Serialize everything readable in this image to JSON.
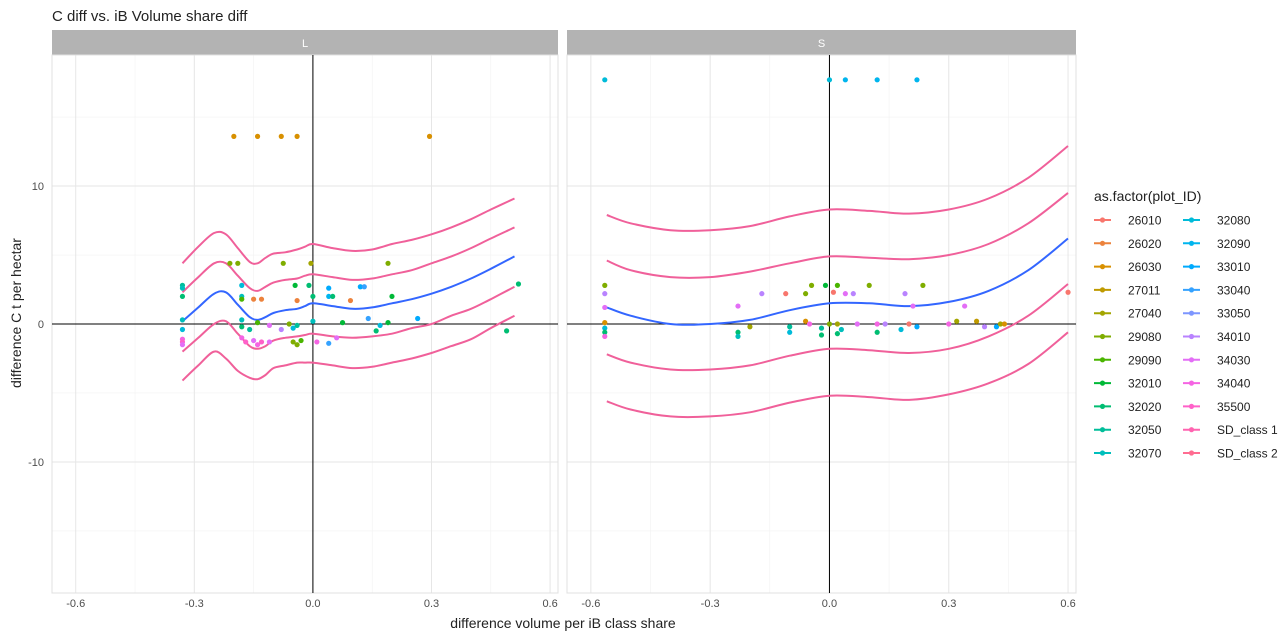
{
  "chart_data": {
    "type": "scatter",
    "title": "C diff vs. iB Volume share diff",
    "xlabel": "difference volume per iB class share",
    "ylabel": "difference C t per hectar",
    "xlim": [
      -0.66,
      0.62
    ],
    "ylim": [
      -19.5,
      19.5
    ],
    "x_ticks": [
      -0.6,
      -0.3,
      0.0,
      0.3,
      0.6
    ],
    "x_tick_labels": [
      "-0.6",
      "-0.3",
      "0.0",
      "0.3",
      "0.6"
    ],
    "y_ticks": [
      -10,
      0,
      10
    ],
    "y_tick_labels": [
      "-10",
      "0",
      "10"
    ],
    "grid": true,
    "reference_lines": {
      "x": 0,
      "y": 0
    },
    "legend": {
      "title": "as.factor(plot_ID)",
      "placement": "right",
      "entries": [
        {
          "label": "26010",
          "color": "#F8766D"
        },
        {
          "label": "26020",
          "color": "#EC823C"
        },
        {
          "label": "26030",
          "color": "#D89000"
        },
        {
          "label": "27011",
          "color": "#BF9A00"
        },
        {
          "label": "27040",
          "color": "#A3A500"
        },
        {
          "label": "29080",
          "color": "#7FAD00"
        },
        {
          "label": "29090",
          "color": "#4AB500"
        },
        {
          "label": "32010",
          "color": "#00B937"
        },
        {
          "label": "32020",
          "color": "#00BD72"
        },
        {
          "label": "32050",
          "color": "#00BE9A"
        },
        {
          "label": "32070",
          "color": "#00BFBC"
        },
        {
          "label": "32080",
          "color": "#00BBD9"
        },
        {
          "label": "32090",
          "color": "#00B5EE"
        },
        {
          "label": "33010",
          "color": "#00AAFE"
        },
        {
          "label": "33040",
          "color": "#35A2FF"
        },
        {
          "label": "33050",
          "color": "#7D96FF"
        },
        {
          "label": "34010",
          "color": "#B983FF"
        },
        {
          "label": "34030",
          "color": "#E36EF6"
        },
        {
          "label": "34040",
          "color": "#F564E3"
        },
        {
          "label": "35500",
          "color": "#FF61C9"
        },
        {
          "label": "SD_class 1",
          "color": "#FF64B0"
        },
        {
          "label": "SD_class 2",
          "color": "#FF6C91"
        }
      ]
    },
    "trend_color": "#3366FF",
    "band_color": "#F0609A",
    "panels": [
      {
        "strip": "L",
        "trend": {
          "x": [
            -0.33,
            -0.29,
            -0.25,
            -0.22,
            -0.19,
            -0.16,
            -0.14,
            -0.12,
            -0.1,
            -0.07,
            -0.04,
            -0.02,
            0.0,
            0.05,
            0.1,
            0.15,
            0.2,
            0.25,
            0.3,
            0.35,
            0.4,
            0.45,
            0.51
          ],
          "y": [
            0.2,
            1.2,
            2.2,
            2.3,
            1.4,
            0.5,
            0.3,
            0.5,
            0.8,
            1.0,
            1.1,
            1.3,
            1.5,
            1.3,
            1.1,
            1.2,
            1.5,
            1.8,
            2.2,
            2.7,
            3.3,
            4.0,
            4.9
          ]
        },
        "bands": [
          {
            "name": "SD_class 2",
            "upper": [
              4.4,
              5.6,
              6.6,
              6.5,
              5.5,
              4.5,
              4.4,
              4.8,
              5.1,
              5.2,
              5.4,
              5.6,
              5.8,
              5.5,
              5.3,
              5.4,
              5.8,
              6.1,
              6.5,
              7.0,
              7.6,
              8.3,
              9.1
            ],
            "lower": [
              -4.1,
              -3.0,
              -2.0,
              -2.5,
              -3.4,
              -3.9,
              -4.0,
              -3.7,
              -3.2,
              -3.0,
              -2.8,
              -2.8,
              -2.8,
              -3.0,
              -3.2,
              -3.1,
              -2.8,
              -2.5,
              -2.1,
              -1.6,
              -1.1,
              -0.3,
              0.6
            ]
          },
          {
            "name": "SD_class 1",
            "upper": [
              2.3,
              3.4,
              4.4,
              4.4,
              3.5,
              2.6,
              2.4,
              2.7,
              3.0,
              3.2,
              3.3,
              3.5,
              3.6,
              3.4,
              3.2,
              3.3,
              3.6,
              3.9,
              4.4,
              4.9,
              5.5,
              6.2,
              7.0
            ],
            "lower": [
              -2.0,
              -1.0,
              0.0,
              0.2,
              -0.7,
              -1.6,
              -1.8,
              -1.6,
              -1.2,
              -1.0,
              -0.9,
              -0.8,
              -0.7,
              -0.9,
              -1.0,
              -0.9,
              -0.7,
              -0.3,
              0.0,
              0.6,
              1.1,
              1.8,
              2.7
            ]
          }
        ],
        "points": [
          {
            "x": -0.2,
            "y": 13.6,
            "series": "26030"
          },
          {
            "x": -0.14,
            "y": 13.6,
            "series": "26030"
          },
          {
            "x": -0.08,
            "y": 13.6,
            "series": "26030"
          },
          {
            "x": -0.04,
            "y": 13.6,
            "series": "26030"
          },
          {
            "x": 0.295,
            "y": 13.6,
            "series": "26030"
          },
          {
            "x": -0.21,
            "y": 4.4,
            "series": "29080"
          },
          {
            "x": -0.19,
            "y": 4.4,
            "series": "29080"
          },
          {
            "x": -0.075,
            "y": 4.4,
            "series": "29080"
          },
          {
            "x": -0.005,
            "y": 4.4,
            "series": "27040"
          },
          {
            "x": 0.19,
            "y": 4.4,
            "series": "29080"
          },
          {
            "x": -0.33,
            "y": 2.8,
            "series": "32050"
          },
          {
            "x": -0.33,
            "y": 2.6,
            "series": "32070"
          },
          {
            "x": -0.33,
            "y": 2.0,
            "series": "32020"
          },
          {
            "x": -0.18,
            "y": 2.8,
            "series": "32080"
          },
          {
            "x": -0.18,
            "y": 2.0,
            "series": "32070"
          },
          {
            "x": -0.18,
            "y": 1.8,
            "series": "29090"
          },
          {
            "x": -0.045,
            "y": 2.8,
            "series": "32010"
          },
          {
            "x": -0.01,
            "y": 2.8,
            "series": "32020"
          },
          {
            "x": 0.04,
            "y": 2.6,
            "series": "33010"
          },
          {
            "x": 0.12,
            "y": 2.7,
            "series": "33010"
          },
          {
            "x": 0.13,
            "y": 2.7,
            "series": "33040"
          },
          {
            "x": 0.0,
            "y": 2.0,
            "series": "32020"
          },
          {
            "x": 0.04,
            "y": 2.0,
            "series": "32090"
          },
          {
            "x": 0.05,
            "y": 2.0,
            "series": "32020"
          },
          {
            "x": 0.2,
            "y": 2.0,
            "series": "32010"
          },
          {
            "x": -0.15,
            "y": 1.8,
            "series": "26020"
          },
          {
            "x": -0.13,
            "y": 1.8,
            "series": "26020"
          },
          {
            "x": -0.04,
            "y": 1.7,
            "series": "26020"
          },
          {
            "x": 0.095,
            "y": 1.7,
            "series": "26020"
          },
          {
            "x": 0.52,
            "y": 2.9,
            "series": "32020"
          },
          {
            "x": -0.33,
            "y": 0.3,
            "series": "32070"
          },
          {
            "x": -0.18,
            "y": 0.3,
            "series": "32070"
          },
          {
            "x": -0.33,
            "y": -0.4,
            "series": "32080"
          },
          {
            "x": -0.18,
            "y": -0.2,
            "series": "32020"
          },
          {
            "x": -0.16,
            "y": -0.4,
            "series": "32050"
          },
          {
            "x": -0.14,
            "y": 0.1,
            "series": "29090"
          },
          {
            "x": -0.11,
            "y": -0.1,
            "series": "34030"
          },
          {
            "x": -0.08,
            "y": -0.4,
            "series": "34010"
          },
          {
            "x": -0.06,
            "y": 0.0,
            "series": "29080"
          },
          {
            "x": -0.05,
            "y": -0.3,
            "series": "32080"
          },
          {
            "x": -0.04,
            "y": -0.1,
            "series": "32050"
          },
          {
            "x": 0.0,
            "y": 0.2,
            "series": "32070"
          },
          {
            "x": 0.075,
            "y": 0.1,
            "series": "32010"
          },
          {
            "x": 0.14,
            "y": 0.4,
            "series": "33040"
          },
          {
            "x": 0.17,
            "y": -0.1,
            "series": "32080"
          },
          {
            "x": 0.19,
            "y": 0.1,
            "series": "32010"
          },
          {
            "x": 0.265,
            "y": 0.4,
            "series": "33010"
          },
          {
            "x": 0.16,
            "y": -0.5,
            "series": "32020"
          },
          {
            "x": 0.49,
            "y": -0.5,
            "series": "32020"
          },
          {
            "x": -0.33,
            "y": -1.1,
            "series": "34040"
          },
          {
            "x": -0.33,
            "y": -1.3,
            "series": "35500"
          },
          {
            "x": -0.33,
            "y": -1.5,
            "series": "34030"
          },
          {
            "x": -0.18,
            "y": -1.0,
            "series": "34040"
          },
          {
            "x": -0.17,
            "y": -1.3,
            "series": "35500"
          },
          {
            "x": -0.15,
            "y": -1.2,
            "series": "34030"
          },
          {
            "x": -0.14,
            "y": -1.5,
            "series": "34040"
          },
          {
            "x": -0.13,
            "y": -1.3,
            "series": "35500"
          },
          {
            "x": -0.11,
            "y": -1.3,
            "series": "34030"
          },
          {
            "x": -0.05,
            "y": -1.3,
            "series": "29080"
          },
          {
            "x": -0.04,
            "y": -1.5,
            "series": "29080"
          },
          {
            "x": -0.03,
            "y": -1.2,
            "series": "29090"
          },
          {
            "x": 0.01,
            "y": -1.3,
            "series": "34040"
          },
          {
            "x": 0.04,
            "y": -1.4,
            "series": "33040"
          },
          {
            "x": 0.06,
            "y": -1.0,
            "series": "34030"
          }
        ]
      },
      {
        "strip": "S",
        "trend": {
          "x": [
            -0.56,
            -0.5,
            -0.4,
            -0.3,
            -0.2,
            -0.1,
            0.0,
            0.1,
            0.2,
            0.3,
            0.4,
            0.5,
            0.6
          ],
          "y": [
            1.2,
            0.6,
            0.0,
            0.0,
            0.3,
            1.0,
            1.5,
            1.5,
            1.3,
            1.6,
            2.4,
            3.9,
            6.2
          ]
        },
        "bands": [
          {
            "name": "SD_class 2",
            "upper": [
              7.9,
              7.3,
              6.8,
              6.8,
              7.1,
              7.8,
              8.3,
              8.2,
              8.0,
              8.3,
              9.1,
              10.6,
              12.9
            ],
            "lower": [
              -5.6,
              -6.2,
              -6.7,
              -6.7,
              -6.4,
              -5.7,
              -5.2,
              -5.3,
              -5.5,
              -5.1,
              -4.3,
              -2.9,
              -0.6
            ]
          },
          {
            "name": "SD_class 1",
            "upper": [
              4.6,
              3.9,
              3.4,
              3.4,
              3.8,
              4.4,
              4.9,
              4.8,
              4.7,
              5.0,
              5.8,
              7.3,
              9.5
            ],
            "lower": [
              -2.2,
              -2.8,
              -3.3,
              -3.3,
              -3.0,
              -2.3,
              -1.8,
              -1.9,
              -2.1,
              -1.8,
              -0.9,
              0.6,
              2.9
            ]
          }
        ],
        "points": [
          {
            "x": -0.565,
            "y": 17.7,
            "series": "32080"
          },
          {
            "x": 0.0,
            "y": 17.7,
            "series": "32080"
          },
          {
            "x": 0.04,
            "y": 17.7,
            "series": "32090"
          },
          {
            "x": 0.12,
            "y": 17.7,
            "series": "32090"
          },
          {
            "x": 0.22,
            "y": 17.7,
            "series": "32090"
          },
          {
            "x": -0.565,
            "y": 2.8,
            "series": "29080"
          },
          {
            "x": -0.565,
            "y": 2.2,
            "series": "34010"
          },
          {
            "x": -0.565,
            "y": 1.2,
            "series": "34030"
          },
          {
            "x": -0.565,
            "y": 0.1,
            "series": "26030"
          },
          {
            "x": -0.565,
            "y": -0.3,
            "series": "32080"
          },
          {
            "x": -0.565,
            "y": -0.6,
            "series": "32020"
          },
          {
            "x": -0.565,
            "y": -0.9,
            "series": "34040"
          },
          {
            "x": -0.23,
            "y": 1.3,
            "series": "34030"
          },
          {
            "x": -0.2,
            "y": -0.2,
            "series": "27040"
          },
          {
            "x": -0.23,
            "y": -0.6,
            "series": "32020"
          },
          {
            "x": -0.23,
            "y": -0.9,
            "series": "32070"
          },
          {
            "x": -0.17,
            "y": 2.2,
            "series": "34010"
          },
          {
            "x": -0.11,
            "y": 2.2,
            "series": "26010"
          },
          {
            "x": -0.1,
            "y": -0.2,
            "series": "32050"
          },
          {
            "x": -0.1,
            "y": -0.6,
            "series": "32080"
          },
          {
            "x": -0.06,
            "y": 2.2,
            "series": "29080"
          },
          {
            "x": -0.045,
            "y": 2.8,
            "series": "29080"
          },
          {
            "x": -0.01,
            "y": 2.8,
            "series": "32010"
          },
          {
            "x": -0.06,
            "y": 0.2,
            "series": "26030"
          },
          {
            "x": -0.05,
            "y": 0.0,
            "series": "34040"
          },
          {
            "x": -0.02,
            "y": -0.3,
            "series": "32050"
          },
          {
            "x": -0.02,
            "y": -0.8,
            "series": "32020"
          },
          {
            "x": 0.0,
            "y": 0.0,
            "series": "29080"
          },
          {
            "x": 0.01,
            "y": 2.3,
            "series": "26010"
          },
          {
            "x": 0.02,
            "y": 2.8,
            "series": "29090"
          },
          {
            "x": 0.04,
            "y": 2.2,
            "series": "34030"
          },
          {
            "x": 0.06,
            "y": 2.2,
            "series": "34010"
          },
          {
            "x": 0.02,
            "y": 0.0,
            "series": "27040"
          },
          {
            "x": 0.03,
            "y": -0.4,
            "series": "32070"
          },
          {
            "x": 0.02,
            "y": -0.7,
            "series": "32020"
          },
          {
            "x": 0.07,
            "y": 0.0,
            "series": "34030"
          },
          {
            "x": 0.1,
            "y": 2.8,
            "series": "29080"
          },
          {
            "x": 0.12,
            "y": -0.6,
            "series": "32020"
          },
          {
            "x": 0.12,
            "y": 0.0,
            "series": "34040"
          },
          {
            "x": 0.14,
            "y": 0.0,
            "series": "34010"
          },
          {
            "x": 0.19,
            "y": 2.2,
            "series": "34010"
          },
          {
            "x": 0.18,
            "y": -0.4,
            "series": "32080"
          },
          {
            "x": 0.2,
            "y": 0.0,
            "series": "26010"
          },
          {
            "x": 0.21,
            "y": 1.3,
            "series": "34030"
          },
          {
            "x": 0.22,
            "y": -0.2,
            "series": "33010"
          },
          {
            "x": 0.235,
            "y": 2.8,
            "series": "29080"
          },
          {
            "x": 0.3,
            "y": 0.0,
            "series": "34040"
          },
          {
            "x": 0.32,
            "y": 0.2,
            "series": "27040"
          },
          {
            "x": 0.34,
            "y": 1.3,
            "series": "34030"
          },
          {
            "x": 0.37,
            "y": 0.2,
            "series": "27011"
          },
          {
            "x": 0.39,
            "y": -0.2,
            "series": "34010"
          },
          {
            "x": 0.42,
            "y": -0.2,
            "series": "33010"
          },
          {
            "x": 0.43,
            "y": 0.0,
            "series": "27040"
          },
          {
            "x": 0.44,
            "y": 0.0,
            "series": "26030"
          },
          {
            "x": 0.6,
            "y": 2.3,
            "series": "26010"
          }
        ]
      }
    ]
  }
}
